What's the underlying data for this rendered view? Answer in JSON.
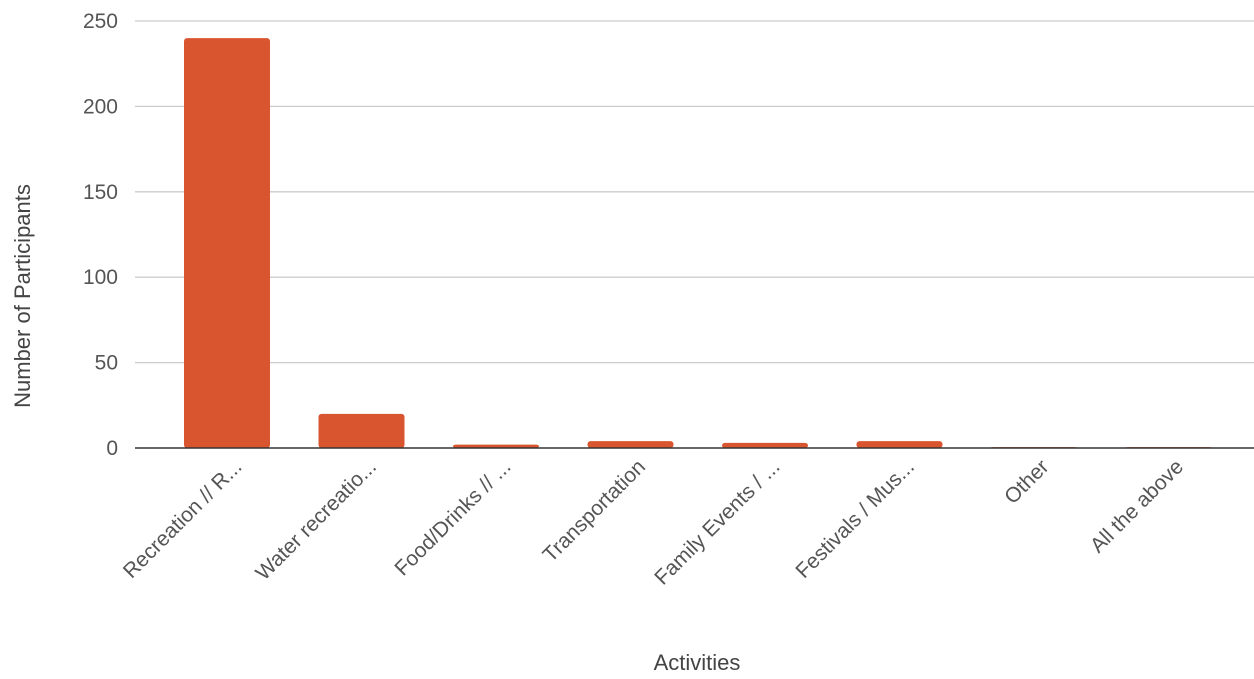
{
  "chart_data": {
    "type": "bar",
    "title": "",
    "xlabel": "Activities",
    "ylabel": "Number of Participants",
    "categories": [
      "Recreation // R...",
      "Water recreatio...",
      "Food/Drinks // ...",
      "Transportation",
      "Family Events / ...",
      "Festivals / Mus...",
      "Other",
      "All the above"
    ],
    "values": [
      240,
      20,
      2,
      4,
      3,
      4,
      0.5,
      0.5
    ],
    "ylim": [
      0,
      250
    ],
    "yticks": [
      0,
      50,
      100,
      150,
      200,
      250
    ],
    "grid": true,
    "legend": "none",
    "bar_color": "#d9552f",
    "grid_color": "#cccccc",
    "baseline_color": "#333333"
  }
}
